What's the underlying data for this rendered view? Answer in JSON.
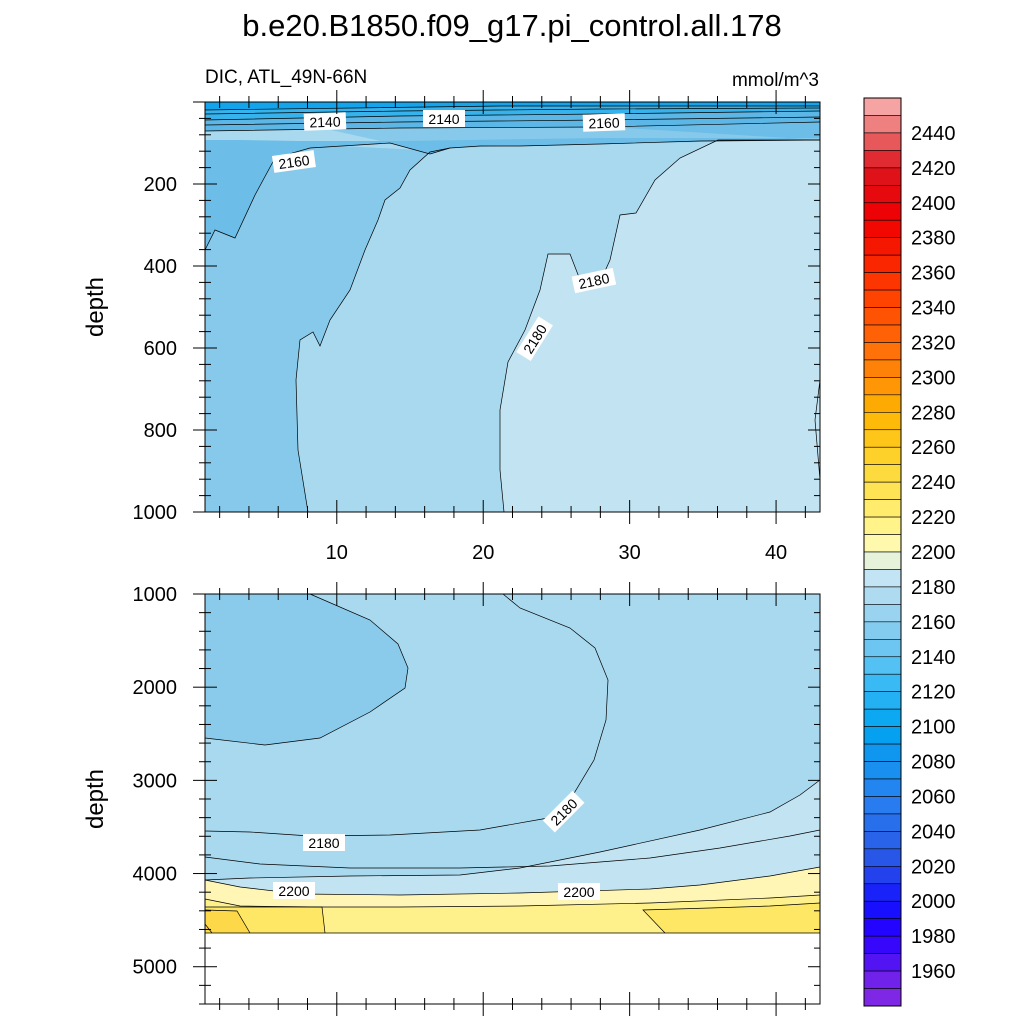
{
  "title": "b.e20.B1850.f09_g17.pi_control.all.178",
  "chart_data": {
    "type": "contour",
    "title": "b.e20.B1850.f09_g17.pi_control.all.178",
    "variable": "DIC",
    "region": "ATL_49N-66N",
    "left_subtitle": "DIC, ATL_49N-66N",
    "units": "mmol/m^3",
    "ylabel": "depth",
    "x_ticks": [
      "10",
      "20",
      "30",
      "40"
    ],
    "xlim": [
      1,
      43
    ],
    "panels": [
      {
        "name": "upper",
        "ylim": [
          0,
          1000
        ],
        "y_ticks": [
          "200",
          "400",
          "600",
          "800",
          "1000"
        ],
        "contour_labels": [
          "2140",
          "2140",
          "2160",
          "2160",
          "2180",
          "2180"
        ]
      },
      {
        "name": "lower",
        "ylim": [
          1000,
          5400
        ],
        "y_ticks": [
          "1000",
          "2000",
          "3000",
          "4000",
          "5000"
        ],
        "contour_labels": [
          "2180",
          "2180",
          "2200",
          "2200"
        ]
      }
    ],
    "colorbar": {
      "min": 1950,
      "max": 2450,
      "step": 10,
      "tick_labels": [
        "2440",
        "2420",
        "2400",
        "2380",
        "2360",
        "2340",
        "2320",
        "2300",
        "2280",
        "2260",
        "2240",
        "2220",
        "2200",
        "2180",
        "2160",
        "2140",
        "2120",
        "2100",
        "2080",
        "2060",
        "2040",
        "2020",
        "2000",
        "1980",
        "1960"
      ]
    }
  }
}
